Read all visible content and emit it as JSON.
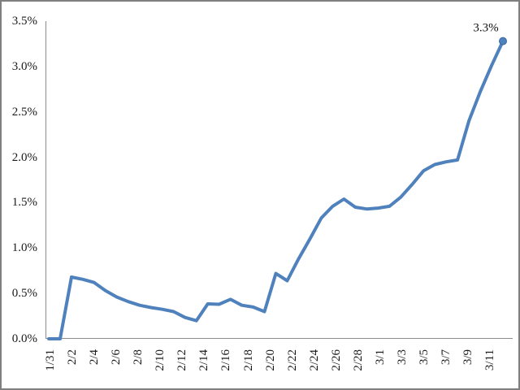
{
  "chart_data": {
    "type": "line",
    "title": "",
    "xlabel": "",
    "ylabel": "",
    "grid": false,
    "legend": "none",
    "ylim": [
      0.0,
      3.5
    ],
    "y_tick_values": [
      3.5,
      3.0,
      2.5,
      2.0,
      1.5,
      1.0,
      0.5,
      0.0
    ],
    "y_tick_labels": [
      "3.5%",
      "3.0%",
      "2.5%",
      "2.0%",
      "1.5%",
      "1.0%",
      "0.5%",
      "0.0%"
    ],
    "x_tick_labels": [
      "1/31",
      "2/2",
      "2/4",
      "2/6",
      "2/8",
      "2/10",
      "2/12",
      "2/14",
      "2/16",
      "2/18",
      "2/20",
      "2/22",
      "2/24",
      "2/26",
      "2/28",
      "3/1",
      "3/3",
      "3/5",
      "3/7",
      "3/9",
      "3/11"
    ],
    "x": [
      "1/31",
      "2/1",
      "2/2",
      "2/3",
      "2/4",
      "2/5",
      "2/6",
      "2/7",
      "2/8",
      "2/9",
      "2/10",
      "2/11",
      "2/12",
      "2/13",
      "2/14",
      "2/15",
      "2/16",
      "2/17",
      "2/18",
      "2/19",
      "2/20",
      "2/21",
      "2/22",
      "2/23",
      "2/24",
      "2/25",
      "2/26",
      "2/27",
      "2/28",
      "2/29",
      "3/1",
      "3/2",
      "3/3",
      "3/4",
      "3/5",
      "3/6",
      "3/7",
      "3/8",
      "3/9",
      "3/10",
      "3/11"
    ],
    "values": [
      0.0,
      0.0,
      0.68,
      0.655,
      0.62,
      0.53,
      0.46,
      0.41,
      0.37,
      0.345,
      0.325,
      0.3,
      0.235,
      0.2,
      0.385,
      0.38,
      0.435,
      0.37,
      0.35,
      0.3,
      0.72,
      0.64,
      0.88,
      1.1,
      1.33,
      1.46,
      1.54,
      1.45,
      1.43,
      1.44,
      1.46,
      1.56,
      1.7,
      1.85,
      1.92,
      1.95,
      1.97,
      2.4,
      2.72,
      3.01,
      3.28
    ],
    "end_point_label": "3.3%",
    "line_color": "#4F81BD",
    "marker_edge_color": "#3A6AA0",
    "axis_color": "#8C8C8C",
    "tick_label_color": "#1a1a1a"
  }
}
